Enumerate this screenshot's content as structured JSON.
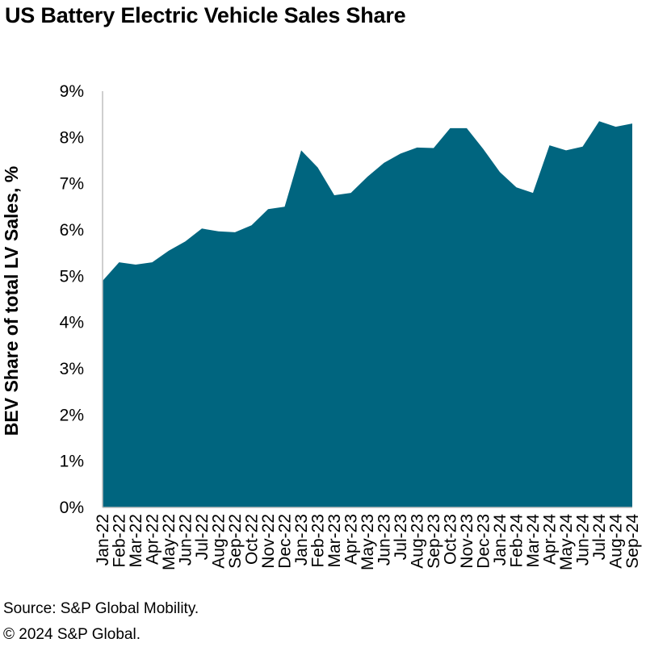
{
  "title": "US Battery Electric Vehicle Sales Share",
  "footer": {
    "source": "Source: S&P Global Mobility.",
    "copyright": "© 2024 S&P Global."
  },
  "colors": {
    "area": "#00657f",
    "axis": "#bfbfbf"
  },
  "chart_data": {
    "type": "area",
    "title": "US Battery Electric Vehicle Sales Share",
    "xlabel": "",
    "ylabel": "BEV Share of total LV Sales, %",
    "ylim": [
      0,
      9
    ],
    "yticks": [
      "0%",
      "1%",
      "2%",
      "3%",
      "4%",
      "5%",
      "6%",
      "7%",
      "8%",
      "9%"
    ],
    "grid": false,
    "legend": "none",
    "categories": [
      "Jan-22",
      "Feb-22",
      "Mar-22",
      "Apr-22",
      "May-22",
      "Jun-22",
      "Jul-22",
      "Aug-22",
      "Sep-22",
      "Oct-22",
      "Nov-22",
      "Dec-22",
      "Jan-23",
      "Feb-23",
      "Mar-23",
      "Apr-23",
      "May-23",
      "Jun-23",
      "Jul-23",
      "Aug-23",
      "Sep-23",
      "Oct-23",
      "Nov-23",
      "Dec-23",
      "Jan-24",
      "Feb-24",
      "Mar-24",
      "Apr-24",
      "May-24",
      "Jun-24",
      "Jul-24",
      "Aug-24",
      "Sep-24"
    ],
    "series": [
      {
        "values": [
          4.9,
          5.3,
          5.25,
          5.3,
          5.55,
          5.75,
          6.03,
          5.97,
          5.95,
          6.1,
          6.45,
          6.5,
          7.72,
          7.35,
          6.75,
          6.8,
          7.15,
          7.45,
          7.65,
          7.78,
          7.77,
          8.2,
          8.2,
          7.75,
          7.25,
          6.92,
          6.8,
          7.83,
          7.72,
          7.8,
          8.35,
          8.23,
          8.3
        ]
      }
    ]
  }
}
